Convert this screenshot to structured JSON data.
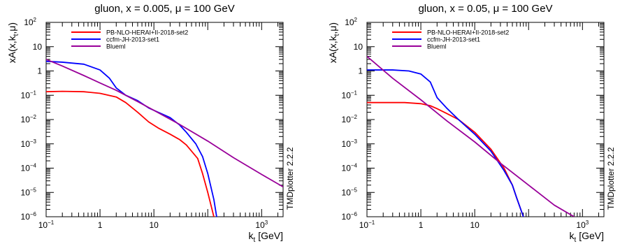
{
  "chart_data": [
    {
      "type": "line",
      "title": "gluon, x = 0.005, μ = 100 GeV",
      "xlabel": "k_t [GeV]",
      "ylabel": "xA(x,k_t,μ)",
      "xscale": "log",
      "yscale": "log",
      "xlim": [
        0.1,
        2500
      ],
      "ylim": [
        1e-06,
        100
      ],
      "grid": false,
      "legend_position": "top-left",
      "watermark": "TMDplotter 2.2.2",
      "series": [
        {
          "name": "PB-NLO-HERAI+II-2018-set2",
          "color": "#ff0000",
          "x": [
            0.1,
            0.2,
            0.5,
            1,
            2,
            3,
            5,
            8,
            12,
            20,
            30,
            40,
            50,
            65,
            80,
            100,
            120,
            140
          ],
          "y": [
            0.14,
            0.145,
            0.14,
            0.12,
            0.085,
            0.05,
            0.02,
            0.008,
            0.0045,
            0.0025,
            0.0015,
            0.0009,
            0.0005,
            0.00025,
            6e-05,
            1e-05,
            2e-06,
            5e-07
          ]
        },
        {
          "name": "ccfm-JH-2013-set1",
          "color": "#0000ff",
          "x": [
            0.1,
            0.2,
            0.5,
            1,
            1.5,
            2,
            3,
            5,
            8,
            12,
            20,
            30,
            40,
            60,
            80,
            100,
            130,
            150
          ],
          "y": [
            2.5,
            2.3,
            1.9,
            1.1,
            0.5,
            0.2,
            0.1,
            0.06,
            0.03,
            0.02,
            0.012,
            0.006,
            0.003,
            0.001,
            0.0003,
            6e-05,
            5e-06,
            7e-07
          ]
        },
        {
          "name": "Blueml",
          "color": "#990099",
          "x": [
            0.1,
            0.2,
            0.5,
            1,
            2,
            5,
            10,
            30,
            100,
            300,
            1000,
            2500
          ],
          "y": [
            3,
            1.6,
            0.65,
            0.32,
            0.16,
            0.055,
            0.024,
            0.0063,
            0.0013,
            0.00027,
            5.5e-05,
            1.7e-05
          ]
        }
      ]
    },
    {
      "type": "line",
      "title": "gluon, x = 0.05, μ = 100 GeV",
      "xlabel": "k_t [GeV]",
      "ylabel": "xA(x,k_t,μ)",
      "xscale": "log",
      "yscale": "log",
      "xlim": [
        0.1,
        2500
      ],
      "ylim": [
        1e-06,
        100
      ],
      "grid": false,
      "legend_position": "top-left",
      "watermark": "TMDplotter 2.2.2",
      "series": [
        {
          "name": "PB-NLO-HERAI+II-2018-set2",
          "color": "#ff0000",
          "x": [
            0.1,
            0.2,
            0.5,
            1,
            1.5,
            2,
            3,
            5,
            10,
            20,
            35,
            50,
            60,
            80,
            90
          ],
          "y": [
            0.05,
            0.05,
            0.05,
            0.045,
            0.037,
            0.028,
            0.018,
            0.01,
            0.003,
            0.0006,
            0.0001,
            2e-05,
            6e-06,
            1e-06,
            5e-07
          ]
        },
        {
          "name": "ccfm-JH-2013-set1",
          "color": "#0000ff",
          "x": [
            0.1,
            0.3,
            0.6,
            1,
            1.5,
            2,
            3,
            5,
            10,
            20,
            35,
            50,
            60,
            80,
            90
          ],
          "y": [
            1.1,
            1.1,
            1.0,
            0.75,
            0.35,
            0.08,
            0.03,
            0.01,
            0.0025,
            0.0005,
            8e-05,
            2e-05,
            6e-06,
            1e-06,
            5e-07
          ]
        },
        {
          "name": "Blueml",
          "color": "#990099",
          "x": [
            0.1,
            0.3,
            1,
            3,
            10,
            30,
            100,
            300,
            700
          ],
          "y": [
            4,
            0.5,
            0.065,
            0.009,
            0.0012,
            0.00016,
            2e-05,
            3e-06,
            1e-06
          ]
        }
      ]
    }
  ]
}
